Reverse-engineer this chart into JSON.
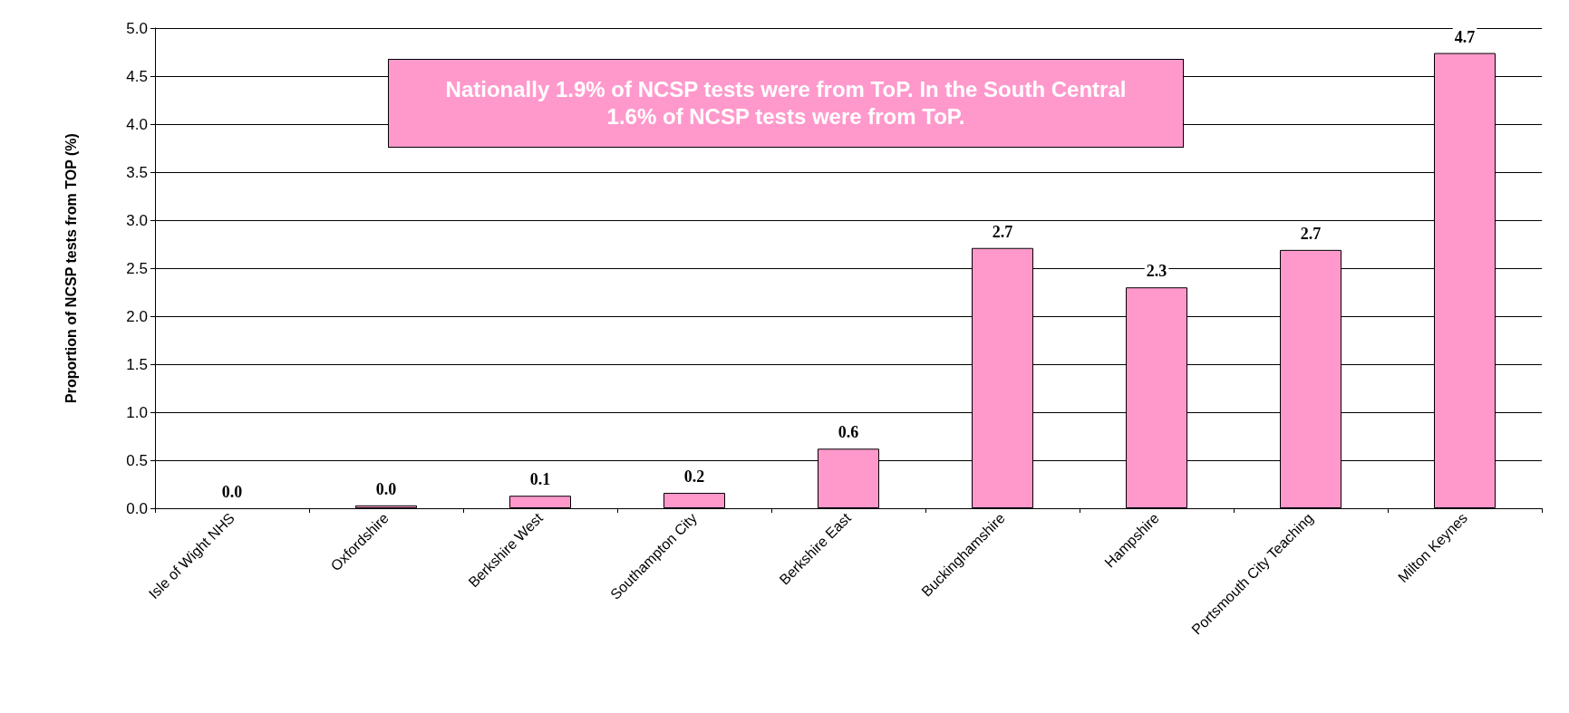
{
  "chart_data": {
    "type": "bar",
    "ylabel": "Proportion of NCSP tests from TOP (%)",
    "categories": [
      "Isle of Wight NHS",
      "Oxfordshire",
      "Berkshire West",
      "Southampton City",
      "Berkshire East",
      "Buckinghamshire",
      "Hampshire",
      "Portsmouth City Teaching",
      "Milton Keynes"
    ],
    "values": [
      0,
      0.03,
      0.13,
      0.16,
      0.62,
      2.71,
      2.3,
      2.69,
      4.74
    ],
    "value_labels": [
      "0.0",
      "0.0",
      "0.1",
      "0.2",
      "0.6",
      "2.7",
      "2.3",
      "2.7",
      "4.7"
    ],
    "color": "#ff99cc",
    "ylim": [
      0,
      5
    ],
    "yticks": [
      {
        "value": 0,
        "label": "0.0"
      },
      0.5,
      {
        "value": 1,
        "label": "1.0"
      },
      1.5,
      {
        "value": 2,
        "label": "2.0"
      },
      2.5,
      {
        "value": 3,
        "label": "3.0"
      },
      3.5,
      {
        "value": 4,
        "label": "4.0"
      },
      4.5,
      {
        "value": 5,
        "label": "5.0"
      }
    ],
    "grid": "y",
    "annotations": [
      "Nationally 1.9% of NCSP tests were from ToP.  In the South Central 1.6% of NCSP tests were from ToP."
    ]
  }
}
